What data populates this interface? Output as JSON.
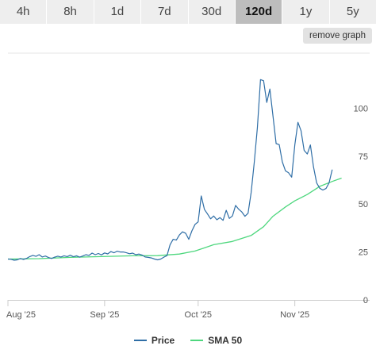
{
  "tabs": [
    {
      "label": "4h",
      "active": false
    },
    {
      "label": "8h",
      "active": false
    },
    {
      "label": "1d",
      "active": false
    },
    {
      "label": "7d",
      "active": false
    },
    {
      "label": "30d",
      "active": false
    },
    {
      "label": "120d",
      "active": true
    },
    {
      "label": "1y",
      "active": false
    },
    {
      "label": "5y",
      "active": false
    }
  ],
  "remove_graph_label": "remove graph",
  "chart_data": {
    "type": "line",
    "x_ticks": [
      "Aug '25",
      "Sep '25",
      "Oct '25",
      "Nov '25"
    ],
    "x_tick_days": [
      0,
      31,
      61,
      92
    ],
    "x_range_days": [
      0,
      116
    ],
    "y_ticks": [
      0,
      25,
      50,
      75,
      100
    ],
    "ylim": [
      0,
      120
    ],
    "grid": false,
    "legend": "bottom-center",
    "series": [
      {
        "name": "Price",
        "color": "#2f6ea6",
        "points": [
          [
            0,
            21.3
          ],
          [
            1,
            21.2
          ],
          [
            2,
            20.7
          ],
          [
            3,
            20.9
          ],
          [
            4,
            21.6
          ],
          [
            5,
            21.1
          ],
          [
            6,
            21.7
          ],
          [
            7,
            22.6
          ],
          [
            8,
            23.2
          ],
          [
            9,
            22.7
          ],
          [
            10,
            23.6
          ],
          [
            11,
            22.4
          ],
          [
            12,
            22.9
          ],
          [
            13,
            22.1
          ],
          [
            14,
            21.6
          ],
          [
            15,
            22.3
          ],
          [
            16,
            22.8
          ],
          [
            17,
            22.4
          ],
          [
            18,
            23.0
          ],
          [
            19,
            22.6
          ],
          [
            20,
            23.3
          ],
          [
            21,
            22.5
          ],
          [
            22,
            23.0
          ],
          [
            23,
            22.3
          ],
          [
            24,
            22.9
          ],
          [
            25,
            23.6
          ],
          [
            26,
            23.2
          ],
          [
            27,
            24.4
          ],
          [
            28,
            23.6
          ],
          [
            29,
            24.2
          ],
          [
            30,
            23.5
          ],
          [
            31,
            24.5
          ],
          [
            32,
            24.0
          ],
          [
            33,
            25.2
          ],
          [
            34,
            24.6
          ],
          [
            35,
            25.4
          ],
          [
            36,
            25.0
          ],
          [
            37,
            25.0
          ],
          [
            38,
            24.6
          ],
          [
            39,
            24.1
          ],
          [
            40,
            24.4
          ],
          [
            41,
            23.6
          ],
          [
            42,
            23.9
          ],
          [
            43,
            23.4
          ],
          [
            44,
            22.4
          ],
          [
            45,
            22.2
          ],
          [
            46,
            21.9
          ],
          [
            47,
            21.3
          ],
          [
            48,
            20.9
          ],
          [
            49,
            21.3
          ],
          [
            50,
            22.3
          ],
          [
            51,
            23.1
          ],
          [
            52,
            28.8
          ],
          [
            53,
            31.6
          ],
          [
            54,
            31.2
          ],
          [
            55,
            33.9
          ],
          [
            56,
            35.5
          ],
          [
            57,
            34.7
          ],
          [
            58,
            31.6
          ],
          [
            59,
            36.0
          ],
          [
            60,
            39.4
          ],
          [
            61,
            40.7
          ],
          [
            62,
            54.2
          ],
          [
            63,
            47.2
          ],
          [
            64,
            44.8
          ],
          [
            65,
            42.3
          ],
          [
            66,
            43.8
          ],
          [
            67,
            41.8
          ],
          [
            68,
            42.9
          ],
          [
            69,
            41.5
          ],
          [
            70,
            46.7
          ],
          [
            71,
            42.5
          ],
          [
            72,
            43.8
          ],
          [
            73,
            49.3
          ],
          [
            74,
            47.3
          ],
          [
            75,
            45.9
          ],
          [
            76,
            43.6
          ],
          [
            77,
            45.2
          ],
          [
            78,
            56.0
          ],
          [
            79,
            72.0
          ],
          [
            80,
            90.0
          ],
          [
            81,
            114.9
          ],
          [
            82,
            114.3
          ],
          [
            83,
            103.0
          ],
          [
            84,
            110.0
          ],
          [
            85,
            96.0
          ],
          [
            86,
            81.5
          ],
          [
            87,
            81.0
          ],
          [
            88,
            72.0
          ],
          [
            89,
            67.3
          ],
          [
            90,
            66.3
          ],
          [
            91,
            64.0
          ],
          [
            92,
            81.0
          ],
          [
            93,
            92.6
          ],
          [
            94,
            88.2
          ],
          [
            95,
            78.0
          ],
          [
            96,
            76.1
          ],
          [
            97,
            80.8
          ],
          [
            98,
            69.4
          ],
          [
            99,
            61.0
          ],
          [
            100,
            58.2
          ],
          [
            101,
            57.3
          ],
          [
            102,
            58.1
          ],
          [
            103,
            61.1
          ],
          [
            104,
            68.0
          ]
        ]
      },
      {
        "name": "SMA 50",
        "color": "#4ed77e",
        "points": [
          [
            0,
            21.3
          ],
          [
            10,
            21.5
          ],
          [
            20,
            22.2
          ],
          [
            30,
            22.6
          ],
          [
            40,
            23.0
          ],
          [
            48,
            23.1
          ],
          [
            55,
            23.9
          ],
          [
            60,
            25.5
          ],
          [
            66,
            28.8
          ],
          [
            72,
            30.5
          ],
          [
            78,
            33.6
          ],
          [
            82,
            38.2
          ],
          [
            85,
            43.6
          ],
          [
            89,
            48.5
          ],
          [
            92,
            51.7
          ],
          [
            96,
            55.0
          ],
          [
            100,
            59.2
          ],
          [
            104,
            61.8
          ],
          [
            107,
            63.5
          ]
        ]
      }
    ]
  }
}
